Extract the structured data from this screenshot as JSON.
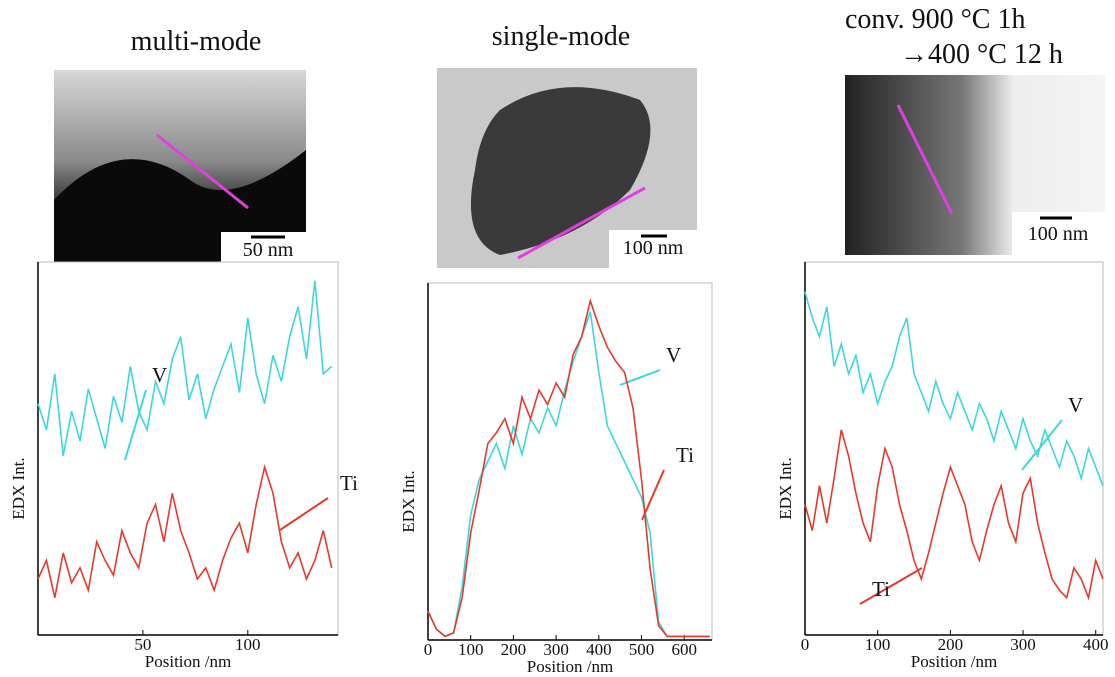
{
  "chart_data": [
    {
      "type": "line",
      "title": [
        "multi-mode"
      ],
      "image_scale_label": "50 nm",
      "xlabel": "Position /nm",
      "ylabel": "EDX Int.",
      "xlim": [
        0,
        143
      ],
      "ylim": [
        0,
        100
      ],
      "xticks": [
        50,
        100
      ],
      "x": [
        0,
        4,
        8,
        12,
        16,
        20,
        24,
        28,
        32,
        36,
        40,
        44,
        48,
        52,
        56,
        60,
        64,
        68,
        72,
        76,
        80,
        84,
        88,
        92,
        96,
        100,
        104,
        108,
        112,
        116,
        120,
        124,
        128,
        132,
        136,
        140
      ],
      "series": [
        {
          "name": "V",
          "color": "#3cd7dc",
          "values": [
            62,
            55,
            70,
            48,
            60,
            52,
            66,
            58,
            50,
            64,
            57,
            72,
            60,
            55,
            68,
            62,
            74,
            80,
            63,
            70,
            58,
            66,
            72,
            78,
            65,
            85,
            70,
            62,
            75,
            68,
            80,
            88,
            74,
            95,
            70,
            72
          ]
        },
        {
          "name": "Ti",
          "color": "#e43a2c",
          "values": [
            15,
            20,
            10,
            22,
            14,
            18,
            12,
            25,
            20,
            16,
            28,
            22,
            18,
            30,
            35,
            25,
            38,
            28,
            22,
            15,
            18,
            12,
            20,
            26,
            30,
            22,
            35,
            45,
            38,
            25,
            18,
            22,
            15,
            20,
            28,
            18
          ]
        }
      ]
    },
    {
      "type": "line",
      "title": [
        "single-mode"
      ],
      "image_scale_label": "100 nm",
      "xlabel": "Position /nm",
      "ylabel": "EDX Int.",
      "xlim": [
        0,
        665
      ],
      "ylim": [
        0,
        100
      ],
      "xticks": [
        0,
        100,
        200,
        300,
        400,
        500,
        600
      ],
      "x": [
        0,
        20,
        40,
        60,
        80,
        100,
        120,
        140,
        160,
        180,
        200,
        220,
        240,
        260,
        280,
        300,
        320,
        340,
        360,
        380,
        400,
        420,
        440,
        460,
        480,
        500,
        520,
        540,
        560,
        580,
        600,
        620,
        640,
        660
      ],
      "series": [
        {
          "name": "V",
          "color": "#3cd7dc",
          "values": [
            8,
            3,
            1,
            2,
            15,
            35,
            45,
            50,
            55,
            48,
            60,
            52,
            62,
            58,
            65,
            60,
            70,
            78,
            85,
            92,
            75,
            60,
            55,
            50,
            45,
            40,
            30,
            5,
            1,
            1,
            1,
            1,
            1,
            1
          ]
        },
        {
          "name": "Ti",
          "color": "#e43a2c",
          "values": [
            8,
            3,
            1,
            2,
            12,
            30,
            42,
            55,
            58,
            62,
            55,
            68,
            62,
            70,
            66,
            72,
            68,
            80,
            85,
            95,
            88,
            82,
            78,
            75,
            65,
            45,
            20,
            4,
            1,
            1,
            1,
            1,
            1,
            1
          ]
        }
      ]
    },
    {
      "type": "line",
      "title": [
        "conv. 900 °C 1h",
        "→400 °C 12 h"
      ],
      "image_scale_label": "100 nm",
      "xlabel": "Position /nm",
      "ylabel": "EDX Int.",
      "xlim": [
        0,
        410
      ],
      "ylim": [
        0,
        100
      ],
      "xticks": [
        0,
        100,
        200,
        300,
        400
      ],
      "x": [
        0,
        10,
        20,
        30,
        40,
        50,
        60,
        70,
        80,
        90,
        100,
        110,
        120,
        130,
        140,
        150,
        160,
        170,
        180,
        190,
        200,
        210,
        220,
        230,
        240,
        250,
        260,
        270,
        280,
        290,
        300,
        310,
        320,
        330,
        340,
        350,
        360,
        370,
        380,
        390,
        400,
        410
      ],
      "series": [
        {
          "name": "V",
          "color": "#3cd7dc",
          "values": [
            92,
            85,
            80,
            88,
            72,
            78,
            70,
            75,
            65,
            70,
            62,
            68,
            72,
            80,
            85,
            70,
            65,
            60,
            68,
            62,
            58,
            65,
            60,
            55,
            62,
            58,
            52,
            60,
            55,
            50,
            58,
            52,
            48,
            55,
            50,
            45,
            52,
            48,
            42,
            50,
            45,
            40
          ]
        },
        {
          "name": "Ti",
          "color": "#e43a2c",
          "values": [
            35,
            28,
            40,
            30,
            42,
            55,
            48,
            38,
            30,
            25,
            40,
            50,
            45,
            35,
            28,
            20,
            15,
            22,
            30,
            38,
            45,
            40,
            35,
            25,
            20,
            28,
            35,
            40,
            30,
            25,
            38,
            42,
            30,
            22,
            15,
            12,
            10,
            18,
            15,
            10,
            20,
            15
          ]
        }
      ]
    }
  ]
}
